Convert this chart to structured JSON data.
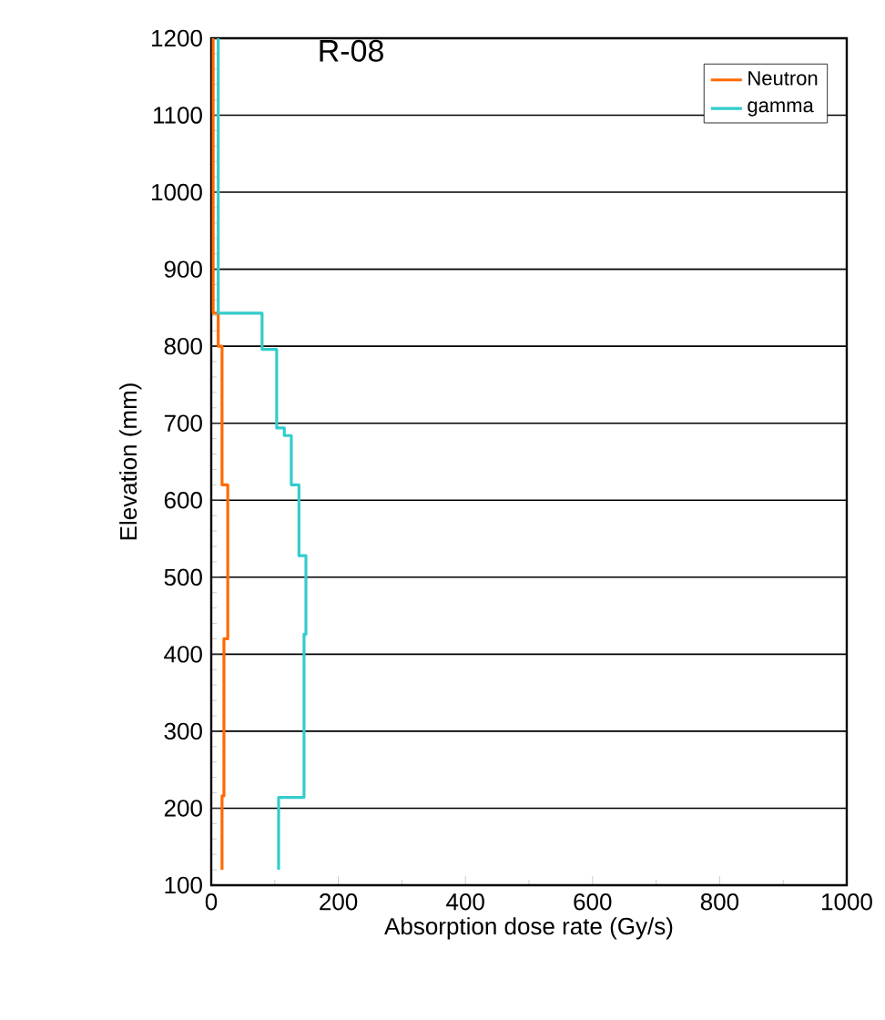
{
  "chart_data": {
    "type": "line",
    "title": "R-08",
    "xlabel": "Absorption dose rate (Gy/s)",
    "ylabel": "Elevation (mm)",
    "xlim": [
      0,
      1000
    ],
    "xticks": [
      0,
      200,
      400,
      600,
      800,
      1000
    ],
    "ylim": [
      100,
      1200
    ],
    "yticks": [
      100,
      200,
      300,
      400,
      500,
      600,
      700,
      800,
      900,
      1000,
      1100,
      1200
    ],
    "grid": "y",
    "legend": "top right",
    "marker": "none",
    "line_style": "solid",
    "series": [
      {
        "name": "Neutron",
        "color": "#ff6a00",
        "x": [
          3,
          3,
          11,
          11,
          17,
          17,
          26,
          26,
          20,
          20,
          17,
          17
        ],
        "values": [
          1200,
          843,
          843,
          800,
          800,
          620,
          620,
          420,
          420,
          216,
          216,
          120
        ]
      },
      {
        "name": "gamma",
        "color": "#33cccc",
        "x": [
          11,
          11,
          80,
          80,
          103,
          103,
          115,
          115,
          126,
          126,
          138,
          138,
          149,
          149,
          146,
          146,
          106,
          106
        ],
        "values": [
          1200,
          843,
          843,
          796,
          796,
          694,
          694,
          684,
          684,
          620,
          620,
          528,
          528,
          426,
          426,
          214,
          214,
          120
        ]
      }
    ]
  }
}
